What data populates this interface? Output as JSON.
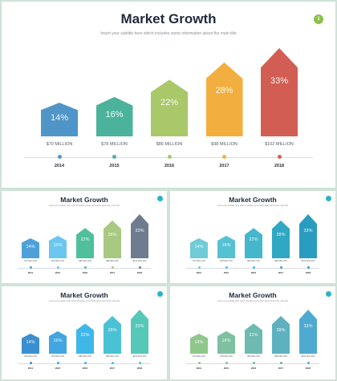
{
  "title": "Market Growth",
  "subtitle": "Insert your subtitle here which includes some information about the main title",
  "badge": "1",
  "columns": [
    {
      "pct": "14%",
      "caption": "$70 MILLION",
      "year": "2014"
    },
    {
      "pct": "16%",
      "caption": "$78 MILLION",
      "year": "2015"
    },
    {
      "pct": "22%",
      "caption": "$86 MILLION",
      "year": "2016"
    },
    {
      "pct": "28%",
      "caption": "$98 MILLION",
      "year": "2017"
    },
    {
      "pct": "33%",
      "caption": "$102 MILLION",
      "year": "2018"
    }
  ],
  "chart_data": {
    "type": "bar",
    "categories": [
      "2014",
      "2015",
      "2016",
      "2017",
      "2018"
    ],
    "values": [
      14,
      16,
      22,
      28,
      33
    ],
    "title": "Market Growth"
  },
  "palettes": {
    "main": [
      "#4f95c8",
      "#4bb39b",
      "#a9c86a",
      "#f2ae3e",
      "#d25e53"
    ],
    "slide2": [
      "#4ea0d8",
      "#6cc6f0",
      "#4fbf9c",
      "#a7c982",
      "#6e7c8f"
    ],
    "slide3": [
      "#6fcbd8",
      "#56c1d3",
      "#44b7cc",
      "#2fa8c4",
      "#2a9cc0"
    ],
    "slide4": [
      "#3b8fd0",
      "#43a6e0",
      "#3fb7e8",
      "#4bc2d4",
      "#55c8b8"
    ],
    "slide5": [
      "#8fc78b",
      "#7ec0a0",
      "#6eb9b0",
      "#5eb2c0",
      "#4eaad0"
    ],
    "badges": [
      "#8dc04a",
      "#2bb3c8",
      "#2bb3c8",
      "#2bb3c8",
      "#2bb3c8"
    ]
  }
}
